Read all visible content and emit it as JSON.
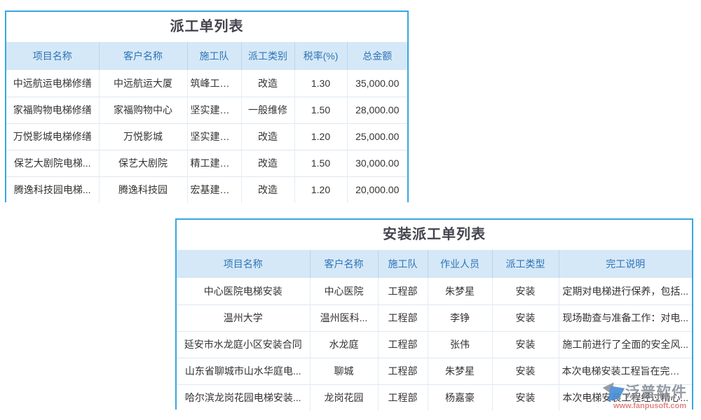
{
  "colors": {
    "card_border": "#36a7e0",
    "header_bg": "#d5e8f7",
    "header_text": "#2f74b8",
    "title_text": "#44444e",
    "body_text": "#333333",
    "link_text": "#3e8ede",
    "watermark_brand_text": "#8d939c",
    "watermark_url_text": "#dd7a7a",
    "watermark_logo_blue": "#4a8fd4",
    "watermark_logo_gray": "#8e959d"
  },
  "tables": [
    {
      "title": "派工单列表",
      "columns": [
        "项目名称",
        "客户名称",
        "施工队",
        "派工类别",
        "税率(%)",
        "总金额"
      ],
      "link_column": -1,
      "rows": [
        [
          "中远航运电梯修缮",
          "中远航运大厦",
          "筑峰工程营",
          "改造",
          "1.30",
          "35,000.00"
        ],
        [
          "家福购物电梯修缮",
          "家福购物中心",
          "坚实建设班",
          "一般维修",
          "1.50",
          "28,000.00"
        ],
        [
          "万悦影城电梯修缮",
          "万悦影城",
          "坚实建设班",
          "改造",
          "1.20",
          "25,000.00"
        ],
        [
          "保艺大剧院电梯...",
          "保艺大剧院",
          "精工建设联",
          "改造",
          "1.50",
          "30,000.00"
        ],
        [
          "腾逸科技园电梯...",
          "腾逸科技园",
          "宏基建设队",
          "改造",
          "1.20",
          "20,000.00"
        ]
      ]
    },
    {
      "title": "安装派工单列表",
      "columns": [
        "项目名称",
        "客户名称",
        "施工队",
        "作业人员",
        "派工类型",
        "完工说明"
      ],
      "link_column": 0,
      "rows": [
        [
          "中心医院电梯安装",
          "中心医院",
          "工程部",
          "朱梦星",
          "安装",
          "定期对电梯进行保养，包括..."
        ],
        [
          "温州大学",
          "温州医科...",
          "工程部",
          "李铮",
          "安装",
          "现场勘查与准备工作：对电..."
        ],
        [
          "延安市水龙庭小区安装合同",
          "水龙庭",
          "工程部",
          "张伟",
          "安装",
          "施工前进行了全面的安全风..."
        ],
        [
          "山东省聊城市山水华庭电...",
          "聊城",
          "工程部",
          "朱梦星",
          "安装",
          "本次电梯安装工程旨在完成[..."
        ],
        [
          "哈尔滨龙岗花园电梯安装...",
          "龙岗花园",
          "工程部",
          "杨嘉豪",
          "安装",
          "本次电梯安装工程经过精心..."
        ]
      ]
    }
  ],
  "watermark": {
    "brand": "泛普软件",
    "url": "www.fanpusoft.com"
  }
}
